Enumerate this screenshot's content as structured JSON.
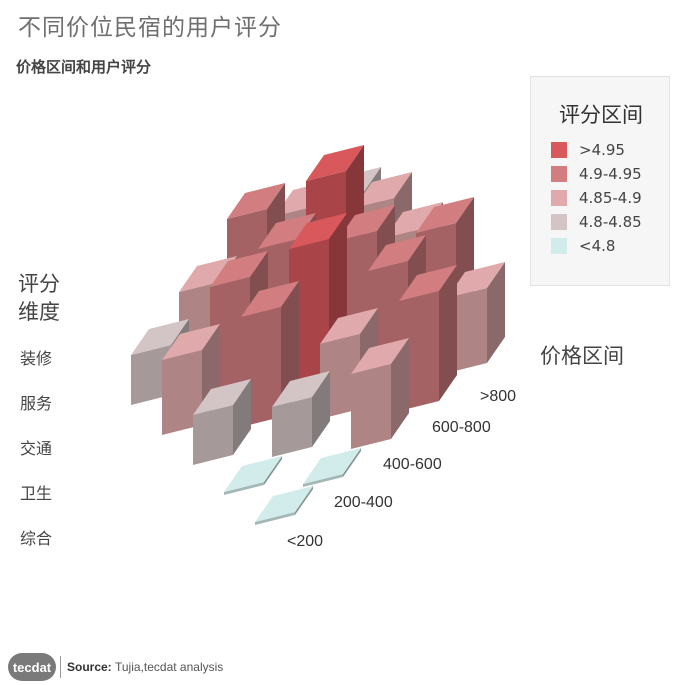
{
  "title": "不同价位民宿的用户评分",
  "subtitle": "价格区间和用户评分",
  "legend": {
    "title": "评分区间",
    "items": [
      {
        "label": ">4.95",
        "color": "#d9585c"
      },
      {
        "label": "4.9-4.95",
        "color": "#d27d80"
      },
      {
        "label": "4.85-4.9",
        "color": "#e0a9ab"
      },
      {
        "label": "4.8-4.85",
        "color": "#d3c4c6"
      },
      {
        "label": "<4.8",
        "color": "#d2ecec"
      }
    ]
  },
  "footer": {
    "logo": "tecdat",
    "source_label": "Source:",
    "source": "Tujia,tecdat analysis"
  },
  "chart_data": {
    "type": "bar3d",
    "title": "不同价位民宿的用户评分",
    "subtitle": "价格区间和用户评分",
    "dimension_axis_title": "评分维度",
    "price_axis_title": "价格区间",
    "dimensions": [
      "装修",
      "服务",
      "交通",
      "卫生",
      "综合"
    ],
    "price_ranges": [
      "<200",
      "200-400",
      "400-600",
      "600-800",
      ">800"
    ],
    "value_unit": "评分区间",
    "rows": [
      {
        "dimension": "装修",
        "values": [
          "4.8-4.85",
          "4.85-4.9",
          "4.9-4.95",
          "4.85-4.9",
          "4.8-4.85"
        ]
      },
      {
        "dimension": "服务",
        "values": [
          "4.85-4.9",
          "4.9-4.95",
          "4.9-4.95",
          "4.95+",
          "4.85-4.9"
        ]
      },
      {
        "dimension": "交通",
        "values": [
          "4.8-4.85",
          "4.9-4.95",
          ">4.95",
          "4.9-4.95",
          "4.85-4.9"
        ]
      },
      {
        "dimension": "卫生",
        "values": [
          "<4.8",
          "4.8-4.85",
          "4.85-4.9",
          "4.9-4.95",
          "4.9-4.95"
        ]
      },
      {
        "dimension": "综合",
        "values": [
          "<4.8",
          "<4.8",
          "4.85-4.9",
          "4.9-4.95",
          "4.85-4.9"
        ]
      }
    ]
  }
}
